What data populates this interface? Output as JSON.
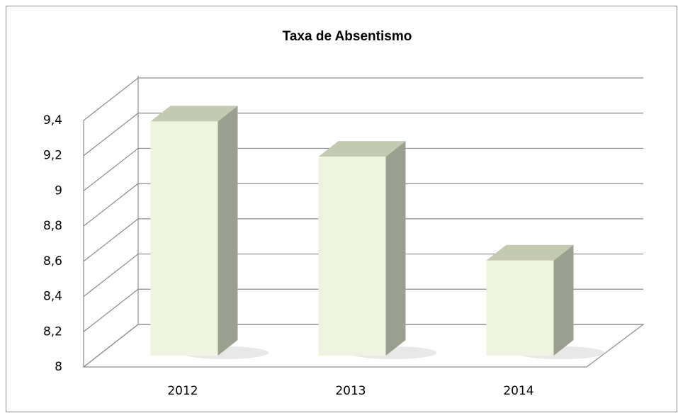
{
  "chart_data": {
    "type": "bar3d",
    "title": "Taxa de Absentismo",
    "categories": [
      "2012",
      "2013",
      "2014"
    ],
    "values": [
      9.33,
      9.13,
      8.54
    ],
    "color": "#eef3df",
    "ylim": [
      8,
      9.4
    ],
    "yticks": [
      8,
      {
        "value": 8.2,
        "label": "8,2"
      },
      {
        "value": 8.4,
        "label": "8,4"
      },
      {
        "value": 8.6,
        "label": "8,6"
      },
      {
        "value": 8.8,
        "label": "8,8"
      },
      9,
      {
        "value": 9.2,
        "label": "9,2"
      },
      {
        "value": 9.4,
        "label": "9,4"
      }
    ],
    "grid": true
  }
}
